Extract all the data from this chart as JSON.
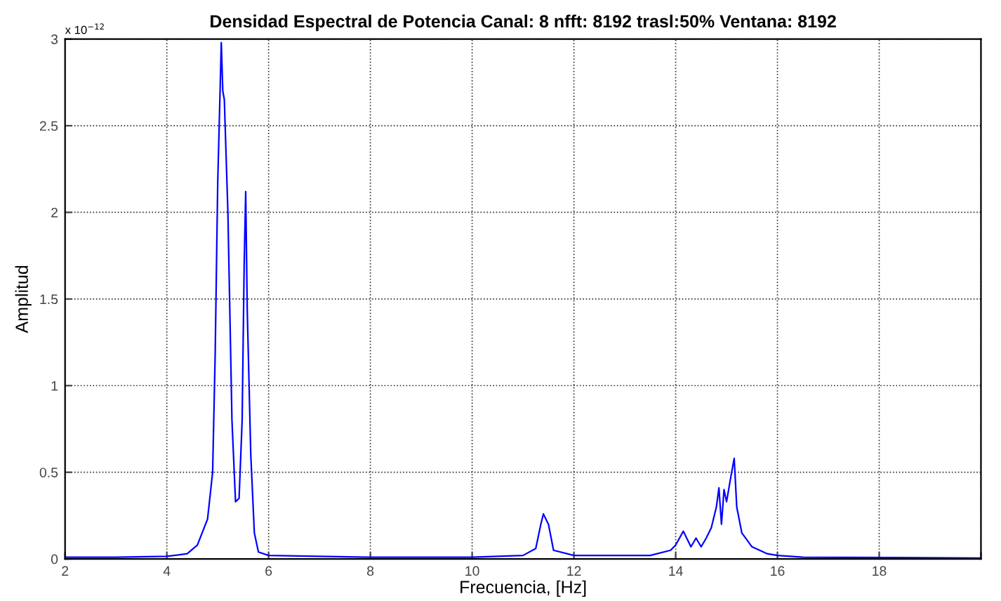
{
  "chart_data": {
    "type": "line",
    "title": "Densidad Espectral de Potencia Canal: 8 nfft: 8192 trasl:50% Ventana: 8192",
    "xlabel": "Frecuencia, [Hz]",
    "ylabel": "Amplitud",
    "annotations": [
      "x 10$^{−12}$"
    ],
    "x": [
      2,
      3,
      4,
      4.4,
      4.6,
      4.8,
      4.9,
      4.95,
      5.0,
      5.05,
      5.07,
      5.1,
      5.13,
      5.2,
      5.28,
      5.35,
      5.42,
      5.48,
      5.52,
      5.55,
      5.58,
      5.65,
      5.72,
      5.8,
      6,
      8,
      10,
      11,
      11.25,
      11.35,
      11.4,
      11.5,
      11.6,
      12,
      13.5,
      13.9,
      14,
      14.15,
      14.3,
      14.4,
      14.5,
      14.6,
      14.7,
      14.8,
      14.85,
      14.9,
      14.95,
      15,
      15.1,
      15.15,
      15.2,
      15.3,
      15.5,
      15.8,
      16,
      16.5,
      20
    ],
    "series": [
      {
        "color": "#0000ff",
        "values": [
          0.01,
          0.01,
          0.015,
          0.03,
          0.08,
          0.23,
          0.5,
          1.18,
          2.17,
          2.74,
          2.98,
          2.7,
          2.65,
          2.0,
          0.8,
          0.33,
          0.35,
          0.8,
          1.7,
          2.12,
          1.44,
          0.6,
          0.15,
          0.04,
          0.02,
          0.01,
          0.01,
          0.02,
          0.06,
          0.2,
          0.26,
          0.2,
          0.05,
          0.02,
          0.02,
          0.05,
          0.08,
          0.16,
          0.07,
          0.12,
          0.07,
          0.12,
          0.18,
          0.3,
          0.41,
          0.2,
          0.4,
          0.33,
          0.5,
          0.58,
          0.3,
          0.15,
          0.07,
          0.03,
          0.02,
          0.01,
          0.005
        ]
      }
    ],
    "xlim": [
      2,
      20
    ],
    "xticks": [
      2,
      4,
      6,
      8,
      10,
      12,
      14,
      16,
      18,
      {
        "value": 20,
        "label": null
      }
    ],
    "ylim": [
      0,
      3
    ],
    "yticks": [
      0,
      0.5,
      1,
      1.5,
      2,
      2.5,
      3
    ],
    "grid": true,
    "line_style": "solid",
    "marker": "none"
  }
}
